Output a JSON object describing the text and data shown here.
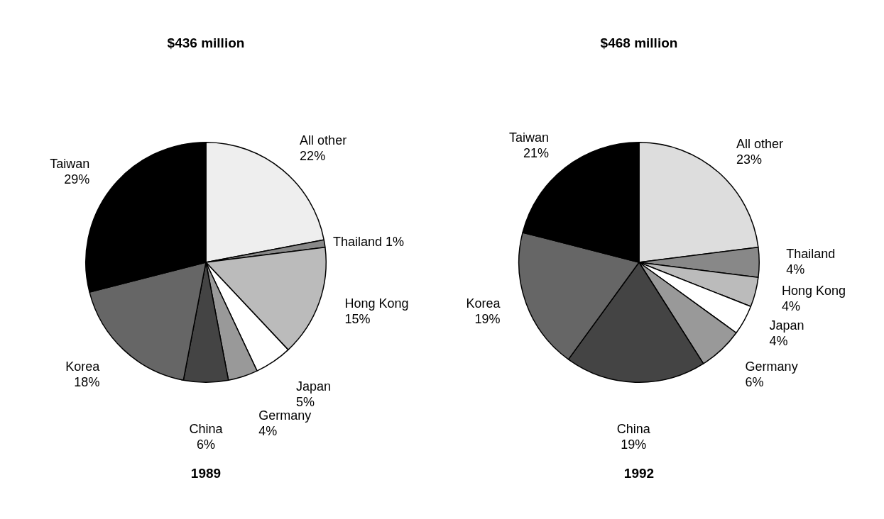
{
  "chart_data": [
    {
      "type": "pie",
      "title": "$436 million",
      "subtitle": "1989",
      "categories": [
        "All other",
        "Thailand",
        "Hong Kong",
        "Japan",
        "Germany",
        "China",
        "Korea",
        "Taiwan"
      ],
      "values": [
        22,
        1,
        15,
        5,
        4,
        6,
        18,
        29
      ],
      "value_labels": [
        "22%",
        "1%",
        "15%",
        "5%",
        "4%",
        "6%",
        "18%",
        "29%"
      ],
      "colors": [
        "#eeeeee",
        "#888888",
        "#bbbbbb",
        "#ffffff",
        "#999999",
        "#444444",
        "#666666",
        "#000000"
      ]
    },
    {
      "type": "pie",
      "title": "$468 million",
      "subtitle": "1992",
      "categories": [
        "All other",
        "Thailand",
        "Hong Kong",
        "Japan",
        "Germany",
        "China",
        "Korea",
        "Taiwan"
      ],
      "values": [
        23,
        4,
        4,
        4,
        6,
        19,
        19,
        21
      ],
      "value_labels": [
        "23%",
        "4%",
        "4%",
        "4%",
        "6%",
        "19%",
        "19%",
        "21%"
      ],
      "colors": [
        "#dddddd",
        "#888888",
        "#bbbbbb",
        "#ffffff",
        "#999999",
        "#444444",
        "#666666",
        "#000000"
      ]
    }
  ]
}
